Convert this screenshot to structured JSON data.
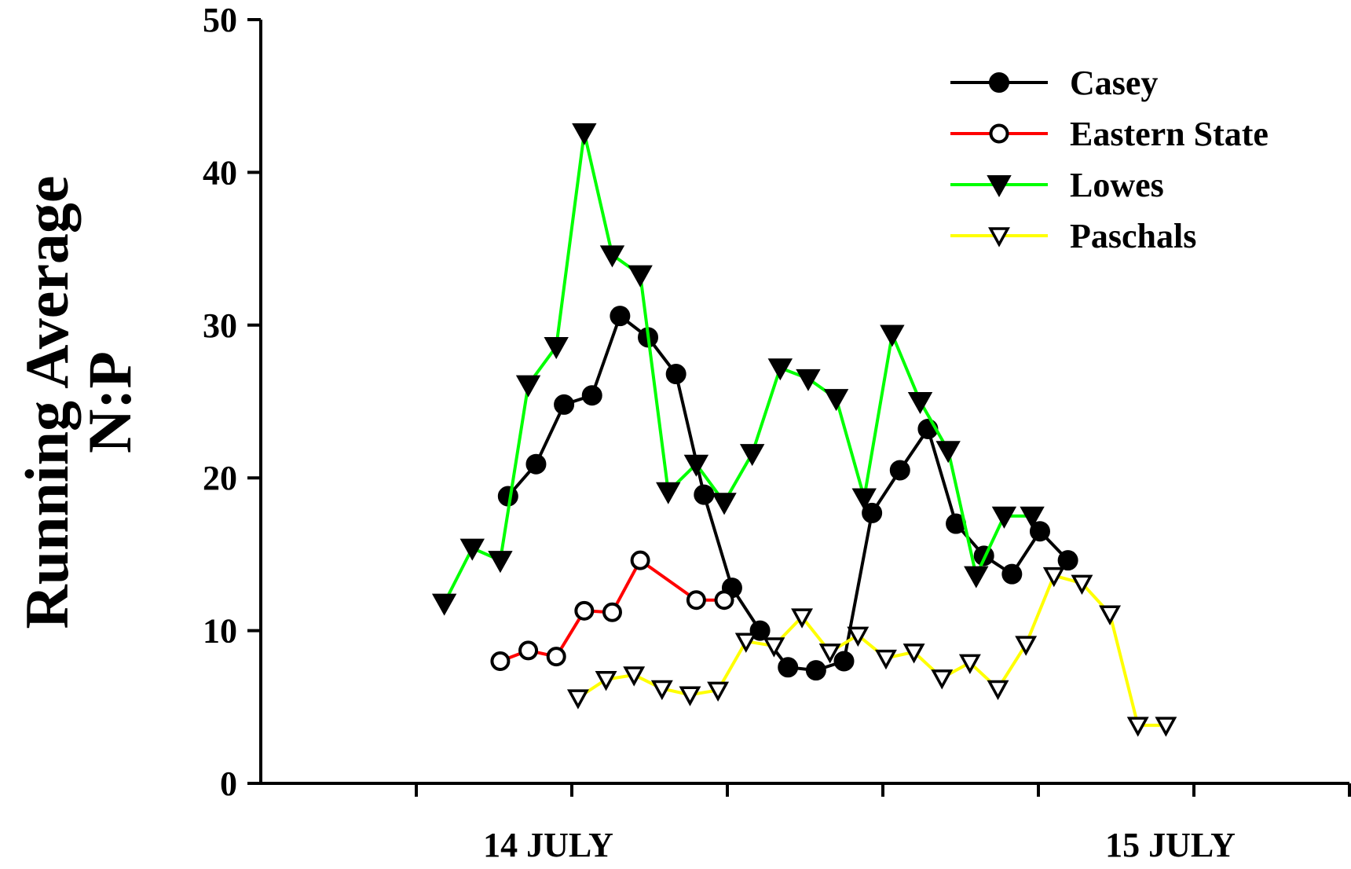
{
  "chart_data": {
    "type": "line",
    "title": "",
    "ylabel": [
      "Running Average",
      "N:P"
    ],
    "xlabel": "",
    "ylim": [
      0,
      50
    ],
    "yticks": [
      0,
      10,
      20,
      30,
      40,
      50
    ],
    "xlim": [
      0,
      7
    ],
    "xtick_positions": [
      1,
      2,
      3,
      4,
      5,
      6,
      7
    ],
    "xtick_labels": [
      {
        "pos": 2,
        "text": "14 JULY"
      },
      {
        "pos": 6,
        "text": "15 JULY"
      }
    ],
    "grid": false,
    "legend_position": "top-right",
    "series": [
      {
        "name": "Casey",
        "color": "#000000",
        "marker": "filled-circle",
        "x": [
          1.59,
          1.77,
          1.95,
          2.13,
          2.31,
          2.49,
          2.67,
          2.85,
          3.03,
          3.21,
          3.39,
          3.57,
          3.75,
          3.93,
          4.11,
          4.29,
          4.47,
          4.65,
          4.83,
          5.01,
          5.19
        ],
        "y": [
          18.8,
          20.9,
          24.8,
          25.4,
          30.6,
          29.2,
          26.8,
          18.9,
          12.8,
          10.0,
          7.6,
          7.4,
          8.0,
          17.7,
          20.5,
          23.2,
          17.0,
          14.9,
          13.7,
          16.5,
          14.6
        ]
      },
      {
        "name": "Eastern State",
        "color": "#ff0000",
        "marker": "open-circle",
        "x": [
          1.54,
          1.72,
          1.9,
          2.08,
          2.26,
          2.44,
          2.8,
          2.98
        ],
        "y": [
          8.0,
          8.7,
          8.3,
          11.3,
          11.2,
          14.6,
          12.0,
          12.0
        ]
      },
      {
        "name": "Lowes",
        "color": "#00ff00",
        "marker": "filled-triangle-down",
        "x": [
          1.18,
          1.36,
          1.54,
          1.72,
          1.9,
          2.08,
          2.26,
          2.44,
          2.62,
          2.8,
          2.98,
          3.16,
          3.34,
          3.52,
          3.7,
          3.88,
          4.06,
          4.24,
          4.42,
          4.6,
          4.78,
          4.96
        ],
        "y": [
          11.8,
          15.4,
          14.6,
          26.1,
          28.6,
          42.6,
          34.6,
          33.3,
          19.1,
          20.9,
          18.4,
          21.6,
          27.2,
          26.5,
          25.2,
          18.7,
          29.4,
          25.0,
          21.8,
          13.6,
          17.5,
          17.5
        ]
      },
      {
        "name": "Paschals",
        "color": "#ffff00",
        "marker": "open-triangle-down",
        "x": [
          2.04,
          2.22,
          2.4,
          2.58,
          2.76,
          2.94,
          3.12,
          3.3,
          3.48,
          3.66,
          3.84,
          4.02,
          4.2,
          4.38,
          4.56,
          4.74,
          4.92,
          5.1,
          5.28,
          5.46,
          5.64,
          5.82
        ],
        "y": [
          5.6,
          6.8,
          7.1,
          6.2,
          5.8,
          6.1,
          9.3,
          9.0,
          10.9,
          8.6,
          9.7,
          8.2,
          8.6,
          6.9,
          7.9,
          6.2,
          9.1,
          13.6,
          13.1,
          11.1,
          3.8,
          3.8
        ]
      }
    ]
  }
}
